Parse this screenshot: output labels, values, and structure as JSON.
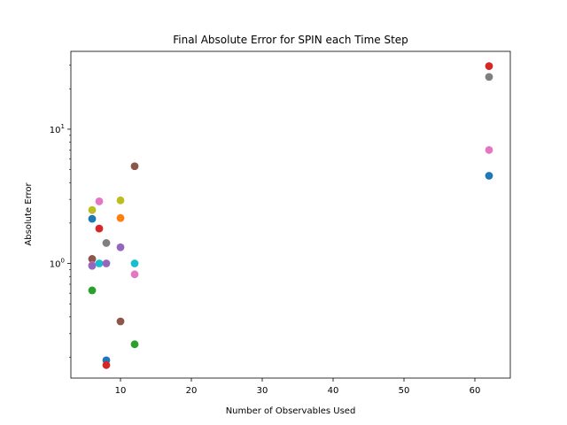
{
  "chart_data": {
    "type": "scatter",
    "title": "Final Absolute Error for SPIN each Time Step",
    "xlabel": "Number of Observables Used",
    "ylabel": "Absolute Error",
    "xlim": [
      3,
      65
    ],
    "ylim": [
      0.14,
      38
    ],
    "yscale": "log",
    "grid": false,
    "legend": "none",
    "x_ticks": [
      {
        "value": 10,
        "label": "10"
      },
      {
        "value": 20,
        "label": "20"
      },
      {
        "value": 30,
        "label": "30"
      },
      {
        "value": 40,
        "label": "40"
      },
      {
        "value": 50,
        "label": "50"
      },
      {
        "value": 60,
        "label": "60"
      }
    ],
    "y_ticks": [
      {
        "value": 1,
        "label_base": "10",
        "label_exp": "0"
      },
      {
        "value": 10,
        "label_base": "10",
        "label_exp": "1"
      }
    ],
    "y_minor_ticks": [
      0.2,
      0.3,
      0.4,
      0.5,
      0.6,
      0.7,
      0.8,
      0.9,
      2,
      3,
      4,
      5,
      6,
      7,
      8,
      9,
      20,
      30
    ],
    "points": [
      {
        "x": 6,
        "y": 2.15,
        "color": "#1f77b4"
      },
      {
        "x": 6,
        "y": 0.63,
        "color": "#2ca02c"
      },
      {
        "x": 6,
        "y": 1.08,
        "color": "#8c564b"
      },
      {
        "x": 6,
        "y": 0.97,
        "color": "#e377c2"
      },
      {
        "x": 6,
        "y": 0.96,
        "color": "#9467bd"
      },
      {
        "x": 6,
        "y": 2.5,
        "color": "#bcbd22"
      },
      {
        "x": 7,
        "y": 1.82,
        "color": "#d62728"
      },
      {
        "x": 7,
        "y": 2.9,
        "color": "#e377c2"
      },
      {
        "x": 7,
        "y": 1.0,
        "color": "#17becf"
      },
      {
        "x": 8,
        "y": 1.42,
        "color": "#7f7f7f"
      },
      {
        "x": 8,
        "y": 1.0,
        "color": "#9467bd"
      },
      {
        "x": 8,
        "y": 0.19,
        "color": "#1f77b4"
      },
      {
        "x": 8,
        "y": 0.175,
        "color": "#d62728"
      },
      {
        "x": 10,
        "y": 2.95,
        "color": "#bcbd22"
      },
      {
        "x": 10,
        "y": 2.18,
        "color": "#ff7f0e"
      },
      {
        "x": 10,
        "y": 1.32,
        "color": "#9467bd"
      },
      {
        "x": 10,
        "y": 0.37,
        "color": "#8c564b"
      },
      {
        "x": 12,
        "y": 5.3,
        "color": "#8c564b"
      },
      {
        "x": 12,
        "y": 1.0,
        "color": "#17becf"
      },
      {
        "x": 12,
        "y": 0.83,
        "color": "#e377c2"
      },
      {
        "x": 12,
        "y": 0.25,
        "color": "#2ca02c"
      },
      {
        "x": 62,
        "y": 29.5,
        "color": "#d62728"
      },
      {
        "x": 62,
        "y": 24.5,
        "color": "#7f7f7f"
      },
      {
        "x": 62,
        "y": 7.0,
        "color": "#e377c2"
      },
      {
        "x": 62,
        "y": 4.5,
        "color": "#1f77b4"
      }
    ]
  }
}
